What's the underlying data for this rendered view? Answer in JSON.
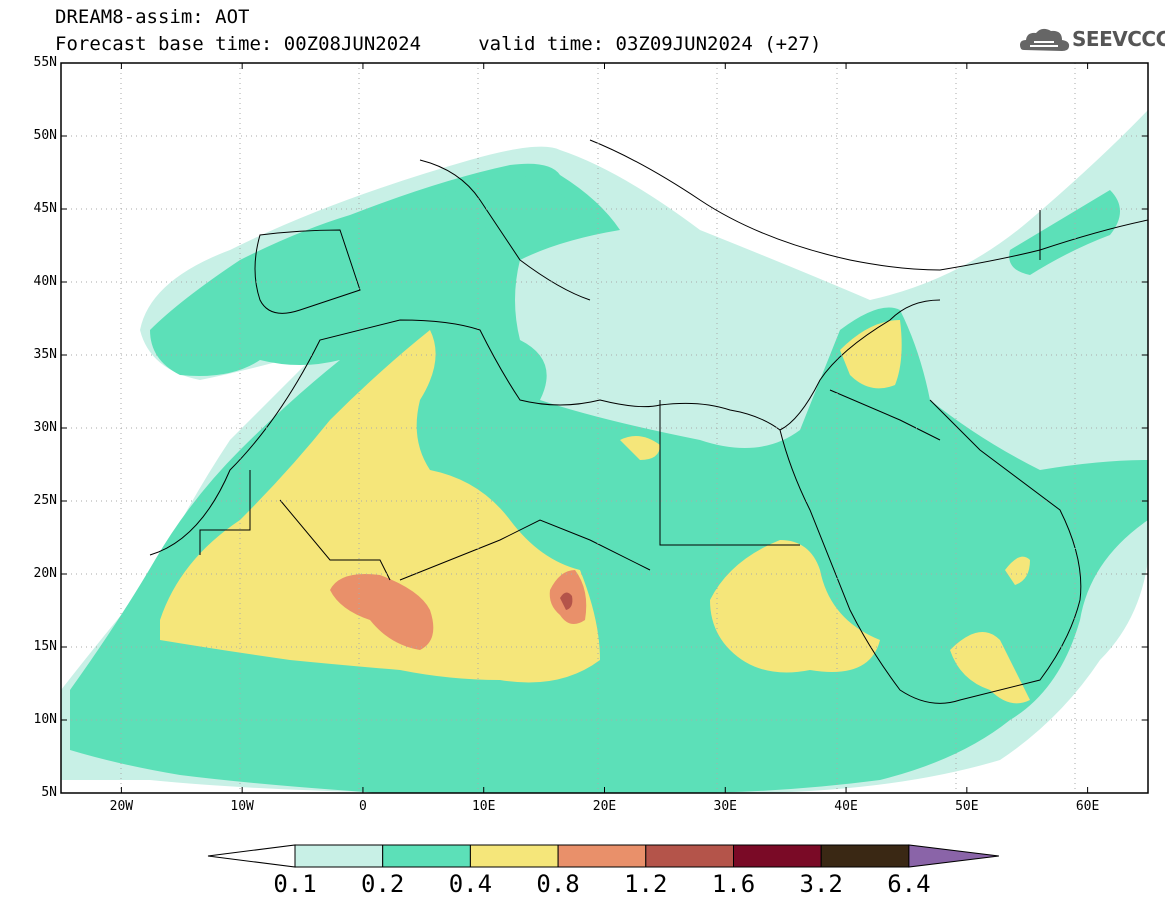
{
  "header": {
    "line1": "DREAM8-assim: AOT",
    "line2": "Forecast base time: 00Z08JUN2024     valid time: 03Z09JUN2024 (+27)"
  },
  "logo": {
    "text": "SEEVCCC",
    "icon": "cloud-icon"
  },
  "map": {
    "lat_range": [
      5,
      55
    ],
    "lon_range": [
      -25,
      65
    ],
    "lat_ticks": [
      "55N",
      "50N",
      "45N",
      "40N",
      "35N",
      "30N",
      "25N",
      "20N",
      "15N",
      "10N",
      "5N"
    ],
    "lon_ticks": [
      "20W",
      "10W",
      "0",
      "10E",
      "20E",
      "30E",
      "40E",
      "50E",
      "60E"
    ]
  },
  "colorbar": {
    "levels": [
      "0.1",
      "0.2",
      "0.4",
      "0.8",
      "1.2",
      "1.6",
      "3.2",
      "6.4"
    ],
    "colors": [
      "#ffffff",
      "#c8f0e6",
      "#5ce0b8",
      "#f5e67a",
      "#e9906a",
      "#b4544a",
      "#7a0a26",
      "#3a2814",
      "#8a64a8"
    ]
  }
}
